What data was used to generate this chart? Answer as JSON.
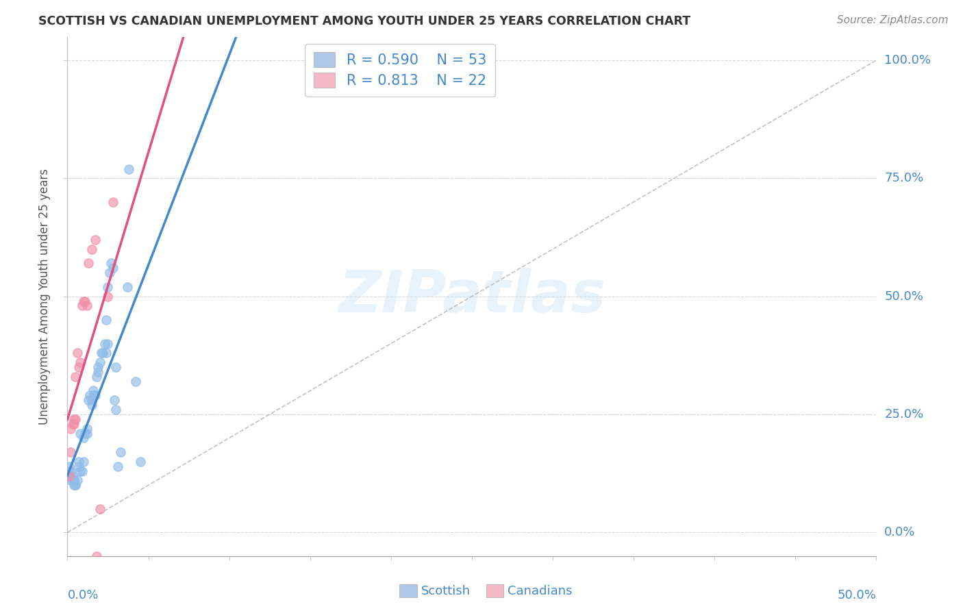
{
  "title": "SCOTTISH VS CANADIAN UNEMPLOYMENT AMONG YOUTH UNDER 25 YEARS CORRELATION CHART",
  "source": "Source: ZipAtlas.com",
  "ylabel": "Unemployment Among Youth under 25 years",
  "ytick_labels": [
    "0.0%",
    "25.0%",
    "50.0%",
    "75.0%",
    "100.0%"
  ],
  "ytick_vals": [
    0.0,
    25.0,
    50.0,
    75.0,
    100.0
  ],
  "xtick_labels": [
    "0.0%",
    "50.0%"
  ],
  "xtick_vals": [
    0.0,
    50.0
  ],
  "legend_entries": [
    {
      "label": "Scottish",
      "patch_color": "#aec6e8",
      "R": "0.590",
      "N": "53"
    },
    {
      "label": "Canadians",
      "patch_color": "#f4b8c8",
      "R": "0.813",
      "N": "22"
    }
  ],
  "scottish_color": "#90bce8",
  "canadian_color": "#f090a8",
  "trendline_scottish_color": "#4488cc",
  "trendline_canadian_color": "#e05080",
  "trendline_dashed_color": "#bbbbbb",
  "background_color": "#ffffff",
  "grid_color": "#cccccc",
  "title_color": "#333333",
  "axis_label_color": "#4488cc",
  "xlim": [
    0.0,
    50.0
  ],
  "ylim": [
    -5.0,
    105.0
  ],
  "scottish_points": [
    [
      0.1,
      13.0
    ],
    [
      0.1,
      14.0
    ],
    [
      0.1,
      12.0
    ],
    [
      0.2,
      12.0
    ],
    [
      0.2,
      13.0
    ],
    [
      0.2,
      11.0
    ],
    [
      0.3,
      12.0
    ],
    [
      0.3,
      11.0
    ],
    [
      0.4,
      11.0
    ],
    [
      0.4,
      10.0
    ],
    [
      0.5,
      10.0
    ],
    [
      0.5,
      10.0
    ],
    [
      0.6,
      11.0
    ],
    [
      0.7,
      14.0
    ],
    [
      0.7,
      15.0
    ],
    [
      0.8,
      13.0
    ],
    [
      0.8,
      21.0
    ],
    [
      0.9,
      13.0
    ],
    [
      1.0,
      15.0
    ],
    [
      1.0,
      20.0
    ],
    [
      1.1,
      21.0
    ],
    [
      1.2,
      22.0
    ],
    [
      1.2,
      21.0
    ],
    [
      1.3,
      28.0
    ],
    [
      1.4,
      29.0
    ],
    [
      1.5,
      28.0
    ],
    [
      1.5,
      27.0
    ],
    [
      1.6,
      29.0
    ],
    [
      1.6,
      30.0
    ],
    [
      1.7,
      29.0
    ],
    [
      1.8,
      33.0
    ],
    [
      1.9,
      34.0
    ],
    [
      1.9,
      35.0
    ],
    [
      2.0,
      36.0
    ],
    [
      2.1,
      38.0
    ],
    [
      2.2,
      38.0
    ],
    [
      2.3,
      40.0
    ],
    [
      2.4,
      45.0
    ],
    [
      2.4,
      38.0
    ],
    [
      2.5,
      40.0
    ],
    [
      2.5,
      52.0
    ],
    [
      2.6,
      55.0
    ],
    [
      2.7,
      57.0
    ],
    [
      2.8,
      56.0
    ],
    [
      2.9,
      28.0
    ],
    [
      3.0,
      26.0
    ],
    [
      3.0,
      35.0
    ],
    [
      3.1,
      14.0
    ],
    [
      3.3,
      17.0
    ],
    [
      3.7,
      52.0
    ],
    [
      3.8,
      77.0
    ],
    [
      4.2,
      32.0
    ],
    [
      4.5,
      15.0
    ]
  ],
  "canadian_points": [
    [
      0.1,
      12.0
    ],
    [
      0.2,
      17.0
    ],
    [
      0.2,
      22.0
    ],
    [
      0.3,
      23.0
    ],
    [
      0.4,
      23.0
    ],
    [
      0.4,
      24.0
    ],
    [
      0.5,
      24.0
    ],
    [
      0.5,
      33.0
    ],
    [
      0.6,
      38.0
    ],
    [
      0.7,
      35.0
    ],
    [
      0.8,
      36.0
    ],
    [
      0.9,
      48.0
    ],
    [
      1.0,
      49.0
    ],
    [
      1.1,
      49.0
    ],
    [
      1.2,
      48.0
    ],
    [
      1.3,
      57.0
    ],
    [
      1.5,
      60.0
    ],
    [
      1.7,
      62.0
    ],
    [
      1.8,
      -5.0
    ],
    [
      2.0,
      5.0
    ],
    [
      2.5,
      50.0
    ],
    [
      2.8,
      70.0
    ]
  ]
}
